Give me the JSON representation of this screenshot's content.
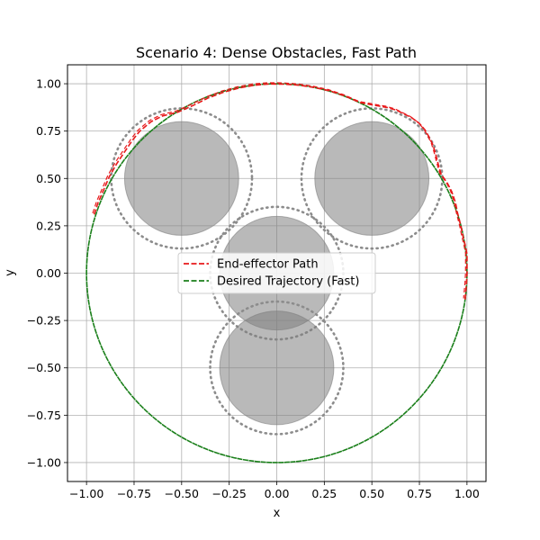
{
  "chart_data": {
    "type": "line",
    "title": "Scenario 4: Dense Obstacles, Fast Path",
    "xlabel": "x",
    "ylabel": "y",
    "xlim": [
      -1.1,
      1.1
    ],
    "ylim": [
      -1.1,
      1.1
    ],
    "xticks": [
      -1.0,
      -0.75,
      -0.5,
      -0.25,
      0.0,
      0.25,
      0.5,
      0.75,
      1.0
    ],
    "xtick_labels": [
      "−1.00",
      "−0.75",
      "−0.50",
      "−0.25",
      "0.00",
      "0.25",
      "0.50",
      "0.75",
      "1.00"
    ],
    "yticks": [
      -1.0,
      -0.75,
      -0.5,
      -0.25,
      0.0,
      0.25,
      0.5,
      0.75,
      1.0
    ],
    "ytick_labels": [
      "−1.00",
      "−0.75",
      "−0.50",
      "−0.25",
      "0.00",
      "0.25",
      "0.50",
      "0.75",
      "1.00"
    ],
    "grid": true,
    "legend_position": "center",
    "obstacles": [
      {
        "cx": -0.5,
        "cy": 0.5,
        "r": 0.3,
        "safety_r": 0.37
      },
      {
        "cx": 0.5,
        "cy": 0.5,
        "r": 0.3,
        "safety_r": 0.37
      },
      {
        "cx": 0.0,
        "cy": 0.0,
        "r": 0.3,
        "safety_r": 0.35
      },
      {
        "cx": 0.0,
        "cy": -0.5,
        "r": 0.3,
        "safety_r": 0.35
      }
    ],
    "series": [
      {
        "name": "End-effector Path",
        "style": "dashed",
        "color": "#e8191b",
        "x": [
          -0.96,
          -0.94,
          -0.91,
          -0.88,
          -0.84,
          -0.8,
          -0.76,
          -0.72,
          -0.66,
          -0.6,
          -0.52,
          -0.44,
          -0.36,
          -0.28,
          -0.2,
          -0.12,
          -0.04,
          0.04,
          0.12,
          0.2,
          0.28,
          0.36,
          0.44,
          0.52,
          0.58,
          0.63,
          0.67,
          0.71,
          0.75,
          0.78,
          0.8,
          0.82,
          0.835,
          0.85,
          0.865,
          0.88,
          0.9,
          0.92,
          0.94,
          0.95,
          0.96,
          0.97,
          0.98,
          0.99,
          1.0,
          1.0,
          0.998,
          0.99
        ],
        "y": [
          0.31,
          0.37,
          0.44,
          0.51,
          0.58,
          0.64,
          0.7,
          0.75,
          0.8,
          0.83,
          0.85,
          0.885,
          0.925,
          0.955,
          0.977,
          0.992,
          0.999,
          0.998,
          0.992,
          0.98,
          0.962,
          0.935,
          0.9,
          0.885,
          0.875,
          0.86,
          0.84,
          0.82,
          0.79,
          0.755,
          0.72,
          0.68,
          0.63,
          0.57,
          0.52,
          0.5,
          0.47,
          0.43,
          0.37,
          0.32,
          0.28,
          0.24,
          0.19,
          0.15,
          0.1,
          0.0,
          -0.05,
          -0.14
        ]
      },
      {
        "name": "Desired Trajectory (Fast)",
        "style": "dashed",
        "color": "#1a7f1a",
        "circle": {
          "cx": 0.0,
          "cy": 0.0,
          "r": 1.0
        }
      }
    ]
  }
}
